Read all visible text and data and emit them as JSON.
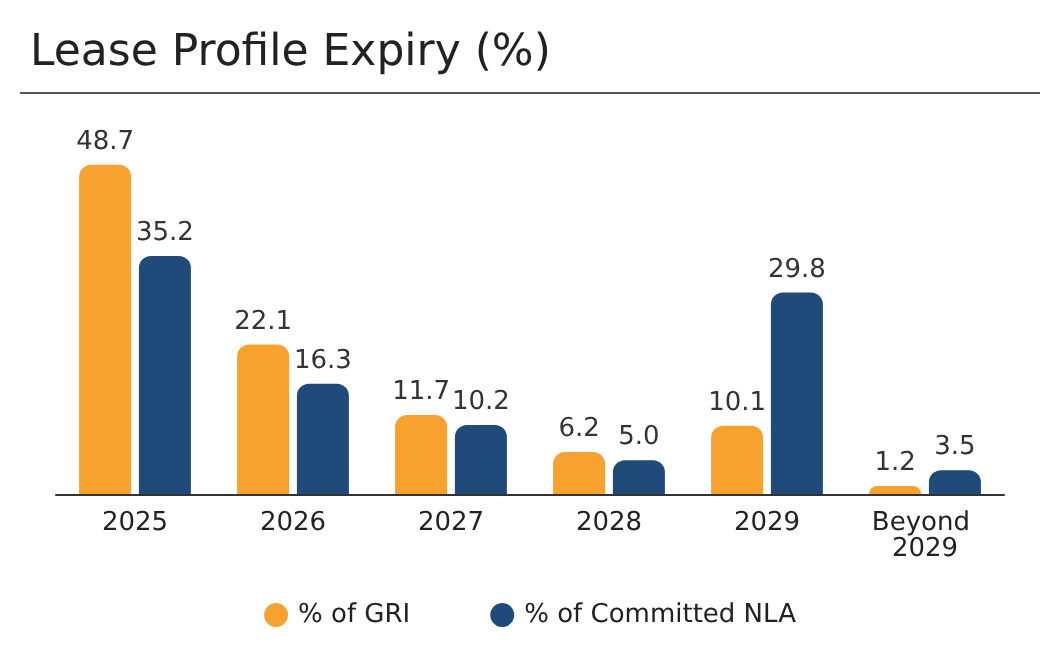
{
  "chart_data": {
    "type": "bar",
    "title": "Lease Profile Expiry (%)",
    "categories": [
      "2025",
      "2026",
      "2027",
      "2028",
      "2029",
      "Beyond 2029"
    ],
    "series": [
      {
        "name": "% of GRI",
        "color": "#f7a12e",
        "values": [
          48.7,
          22.1,
          11.7,
          6.2,
          10.1,
          1.2
        ],
        "value_labels": [
          "48.7",
          "22.1",
          "11.7",
          "6.2",
          "10.1",
          "1.2"
        ]
      },
      {
        "name": "% of Committed NLA",
        "color": "#1f4a7a",
        "values": [
          35.2,
          16.3,
          10.2,
          5.0,
          29.8,
          3.5
        ],
        "value_labels": [
          "35.2",
          "16.3",
          "10.2",
          "5.0",
          "29.8",
          "3.5"
        ]
      }
    ],
    "legend": "bottom"
  }
}
